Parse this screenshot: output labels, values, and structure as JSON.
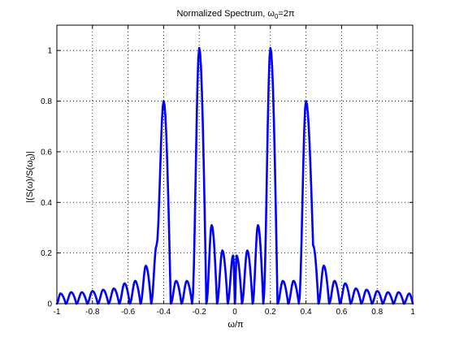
{
  "chart_data": {
    "type": "line",
    "title": {
      "main": "Normalized Spectrum, ω",
      "sub": "0",
      "tail": "=2π"
    },
    "xlabel": "ω/π",
    "ylabel": {
      "main": "|(S(ω)/S(ω",
      "sub": "0",
      "tail": ")|"
    },
    "xlim": [
      -1,
      1
    ],
    "ylim": [
      0,
      1.1
    ],
    "xticks": [
      -1,
      -0.8,
      -0.6,
      -0.4,
      -0.2,
      0,
      0.2,
      0.4,
      0.6,
      0.8,
      1
    ],
    "xtick_labels": [
      "-1",
      "-0.8",
      "-0.6",
      "-0.4",
      "-0.2",
      "0",
      "0.2",
      "0.4",
      "0.6",
      "0.8",
      "1"
    ],
    "yticks": [
      0,
      0.2,
      0.4,
      0.6,
      0.8,
      1
    ],
    "ytick_labels": [
      "0",
      "0.2",
      "0.4",
      "0.6",
      "0.8",
      "1"
    ],
    "grid": true,
    "line_color": "#0000ff",
    "series": [
      {
        "style": "|sinc| lobes (approximated)",
        "x": [
          -1,
          -0.98,
          -0.95,
          -0.92,
          -0.89,
          -0.86,
          -0.83,
          -0.8,
          -0.77,
          -0.74,
          -0.71,
          -0.68,
          -0.65,
          -0.62,
          -0.59,
          -0.56,
          -0.53,
          -0.5,
          -0.47,
          -0.44,
          -0.4,
          -0.36,
          -0.33,
          -0.3,
          -0.27,
          -0.24,
          -0.2,
          -0.16,
          -0.13,
          -0.1,
          -0.07,
          -0.04,
          -0.01,
          0,
          0.01,
          0.04,
          0.07,
          0.1,
          0.13,
          0.16,
          0.2,
          0.24,
          0.27,
          0.3,
          0.33,
          0.36,
          0.4,
          0.44,
          0.47,
          0.5,
          0.53,
          0.56,
          0.59,
          0.62,
          0.65,
          0.68,
          0.71,
          0.74,
          0.77,
          0.8,
          0.83,
          0.86,
          0.89,
          0.92,
          0.95,
          0.98,
          1
        ],
        "y": [
          0.0,
          0.04,
          0.0,
          0.045,
          0.0,
          0.045,
          0.0,
          0.05,
          0.0,
          0.055,
          0.0,
          0.06,
          0.0,
          0.08,
          0.0,
          0.09,
          0.0,
          0.15,
          0.0,
          0.23,
          0.8,
          0.0,
          0.09,
          0.0,
          0.09,
          0.0,
          1.01,
          0.0,
          0.31,
          0.0,
          0.21,
          0.0,
          0.19,
          0.0,
          0.19,
          0.0,
          0.21,
          0.0,
          0.31,
          0.0,
          1.01,
          0.0,
          0.09,
          0.0,
          0.09,
          0.0,
          0.8,
          0.23,
          0.0,
          0.15,
          0.0,
          0.09,
          0.0,
          0.08,
          0.0,
          0.06,
          0.0,
          0.055,
          0.0,
          0.05,
          0.0,
          0.045,
          0.0,
          0.045,
          0.0,
          0.04,
          0.0
        ]
      }
    ]
  }
}
